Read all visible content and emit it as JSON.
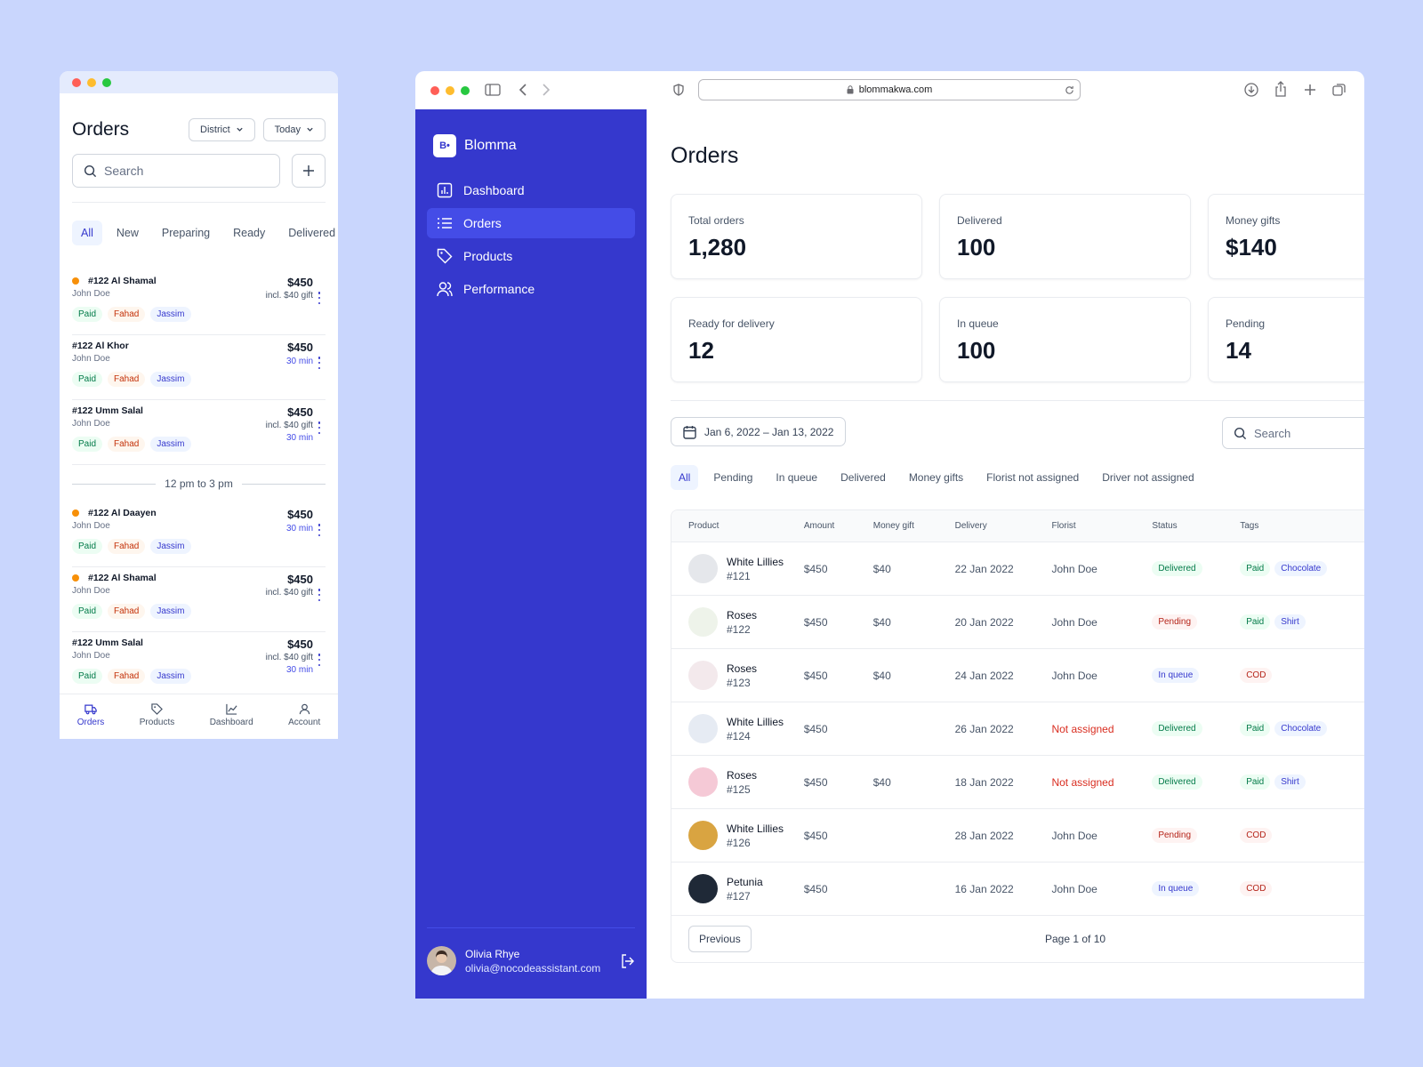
{
  "mobile": {
    "title": "Orders",
    "district_label": "District",
    "today_label": "Today",
    "search_placeholder": "Search",
    "tabs": [
      "All",
      "New",
      "Preparing",
      "Ready",
      "Delivered"
    ],
    "orders_group1": [
      {
        "title": "#122 Al Shamal",
        "name": "John Doe",
        "amount": "$450",
        "sub": "incl. $40 gift",
        "minutes": "",
        "dot": true,
        "tags": [
          "Paid",
          "Fahad",
          "Jassim"
        ]
      },
      {
        "title": "#122 Al Khor",
        "name": "John Doe",
        "amount": "$450",
        "sub": "",
        "minutes": "30 min",
        "dot": false,
        "tags": [
          "Paid",
          "Fahad",
          "Jassim"
        ]
      },
      {
        "title": "#122 Umm Salal",
        "name": "John Doe",
        "amount": "$450",
        "sub": "incl. $40 gift",
        "minutes": "30 min",
        "dot": false,
        "tags": [
          "Paid",
          "Fahad",
          "Jassim"
        ]
      }
    ],
    "separator": "12 pm to 3 pm",
    "orders_group2": [
      {
        "title": "#122 Al Daayen",
        "name": "John Doe",
        "amount": "$450",
        "sub": "",
        "minutes": "30 min",
        "dot": true,
        "tags": [
          "Paid",
          "Fahad",
          "Jassim"
        ]
      },
      {
        "title": "#122 Al Shamal",
        "name": "John Doe",
        "amount": "$450",
        "sub": "incl. $40 gift",
        "minutes": "",
        "dot": true,
        "tags": [
          "Paid",
          "Fahad",
          "Jassim"
        ]
      },
      {
        "title": "#122 Umm Salal",
        "name": "John Doe",
        "amount": "$450",
        "sub": "incl. $40 gift",
        "minutes": "30 min",
        "dot": false,
        "tags": [
          "Paid",
          "Fahad",
          "Jassim"
        ]
      }
    ],
    "bottom_nav": [
      "Orders",
      "Products",
      "Dashboard",
      "Account"
    ]
  },
  "browser": {
    "url": "blommakwa.com",
    "brand": "Blomma",
    "logo_text": "B•",
    "nav": [
      "Dashboard",
      "Orders",
      "Products",
      "Performance"
    ],
    "user": {
      "name": "Olivia Rhye",
      "email": "olivia@nocodeassistant.com"
    },
    "page_title": "Orders",
    "stats": [
      {
        "label": "Total orders",
        "value": "1,280"
      },
      {
        "label": "Delivered",
        "value": "100"
      },
      {
        "label": "Money gifts",
        "value": "$140"
      },
      {
        "label": "Ready for delivery",
        "value": "12"
      },
      {
        "label": "In queue",
        "value": "100"
      },
      {
        "label": "Pending",
        "value": "14"
      }
    ],
    "date_range": "Jan 6, 2022 – Jan 13, 2022",
    "search_placeholder": "Search",
    "filter_tabs": [
      "All",
      "Pending",
      "In queue",
      "Delivered",
      "Money gifts",
      "Florist not assigned",
      "Driver not assigned"
    ],
    "columns": [
      "Product",
      "Amount",
      "Money gift",
      "Delivery",
      "Florist",
      "Status",
      "Tags"
    ],
    "rows": [
      {
        "product": "White Lillies",
        "id": "#121",
        "amount": "$450",
        "gift": "$40",
        "delivery": "22 Jan 2022",
        "florist": "John Doe",
        "status": "Delivered",
        "tags": [
          "Paid",
          "Chocolate"
        ],
        "thumb": "#e5e7eb"
      },
      {
        "product": "Roses",
        "id": "#122",
        "amount": "$450",
        "gift": "$40",
        "delivery": "20 Jan 2022",
        "florist": "John Doe",
        "status": "Pending",
        "tags": [
          "Paid",
          "Shirt"
        ],
        "thumb": "#eef3ea"
      },
      {
        "product": "Roses",
        "id": "#123",
        "amount": "$450",
        "gift": "$40",
        "delivery": "24 Jan 2022",
        "florist": "John Doe",
        "status": "In queue",
        "tags": [
          "COD"
        ],
        "thumb": "#f3e9ec"
      },
      {
        "product": "White Lillies",
        "id": "#124",
        "amount": "$450",
        "gift": "",
        "delivery": "26 Jan 2022",
        "florist": "Not assigned",
        "status": "Delivered",
        "tags": [
          "Paid",
          "Chocolate"
        ],
        "thumb": "#e6ebf3"
      },
      {
        "product": "Roses",
        "id": "#125",
        "amount": "$450",
        "gift": "$40",
        "delivery": "18 Jan 2022",
        "florist": "Not assigned",
        "status": "Delivered",
        "tags": [
          "Paid",
          "Shirt"
        ],
        "thumb": "#f5c9d6"
      },
      {
        "product": "White Lillies",
        "id": "#126",
        "amount": "$450",
        "gift": "",
        "delivery": "28 Jan 2022",
        "florist": "John Doe",
        "status": "Pending",
        "tags": [
          "COD"
        ],
        "thumb": "#d9a441"
      },
      {
        "product": "Petunia",
        "id": "#127",
        "amount": "$450",
        "gift": "",
        "delivery": "16 Jan 2022",
        "florist": "John Doe",
        "status": "In queue",
        "tags": [
          "COD"
        ],
        "thumb": "#1f2937"
      }
    ],
    "prev_label": "Previous",
    "page_info": "Page 1 of 10"
  },
  "colors": {
    "background": "#c9d6fd",
    "sidebar": "#3538cd",
    "accent": "#444ce7"
  }
}
